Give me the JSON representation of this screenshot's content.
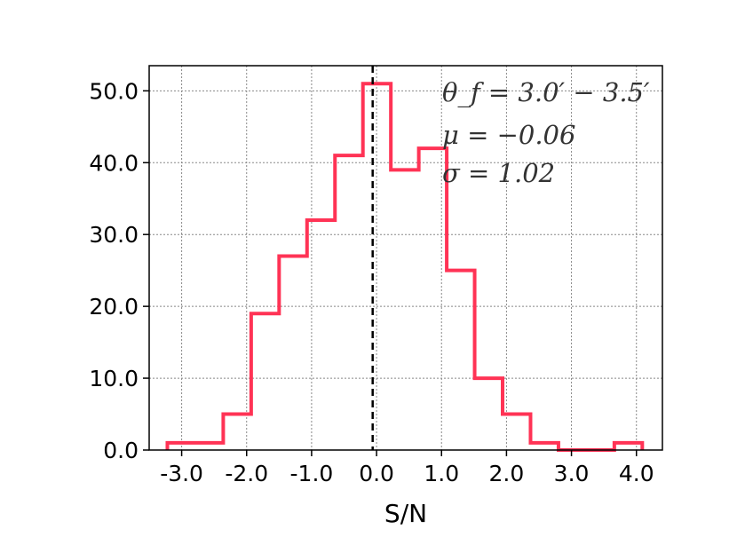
{
  "chart_data": {
    "type": "histogram",
    "title": "",
    "xlabel": "S/N",
    "ylabel": "",
    "xlim": [
      -3.5,
      4.4
    ],
    "ylim": [
      0,
      53.5
    ],
    "xticks": [
      -3,
      -2,
      -1,
      0,
      1,
      2,
      3,
      4
    ],
    "xtick_labels": [
      "-3.0",
      "-2.0",
      "-1.0",
      "0.0",
      "1.0",
      "2.0",
      "3.0",
      "4.0"
    ],
    "yticks": [
      0,
      10,
      20,
      30,
      40,
      50
    ],
    "ytick_labels": [
      "0.0",
      "10.0",
      "20.0",
      "30.0",
      "40.0",
      "50.0"
    ],
    "grid": true,
    "bin_edges": [
      -3.22,
      -2.79,
      -2.36,
      -1.93,
      -1.5,
      -1.07,
      -0.64,
      -0.21,
      0.22,
      0.65,
      1.08,
      1.51,
      1.94,
      2.37,
      2.8,
      3.23,
      3.66,
      4.09
    ],
    "values": [
      1,
      1,
      5,
      19,
      27,
      32,
      41,
      51,
      39,
      42,
      25,
      10,
      5,
      1,
      0,
      0,
      1
    ],
    "color": "#ff3355",
    "mean_line": {
      "x": -0.06,
      "style": "dashed",
      "color": "#000000"
    },
    "annotations": [
      "θ_f = 3.0′ − 3.5′",
      "μ = −0.06",
      "σ = 1.02"
    ]
  }
}
